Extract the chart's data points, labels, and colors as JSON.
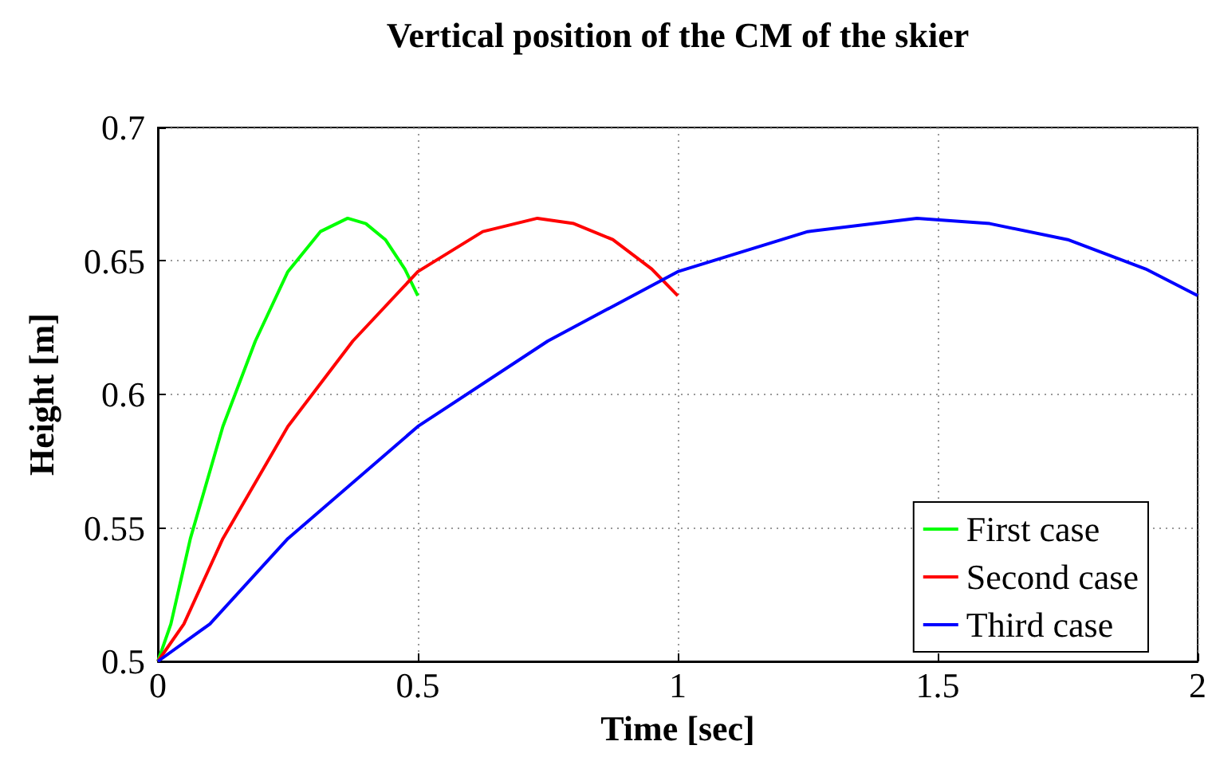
{
  "chart_data": {
    "type": "line",
    "title": "Vertical position of the CM of the skier",
    "xlabel": "Time [sec]",
    "ylabel": "Height [m]",
    "xlim": [
      0,
      2
    ],
    "xticks": [
      0,
      0.5,
      1,
      1.5,
      2
    ],
    "ylim": [
      0.5,
      0.7
    ],
    "yticks": [
      0.5,
      0.55,
      0.6,
      0.65,
      0.7
    ],
    "grid": true,
    "legend": "bottom right",
    "line_style": "solid",
    "marker": "none",
    "series": [
      {
        "name": "First case",
        "color": "#00ff00",
        "x": [
          0,
          0.025,
          0.0625,
          0.125,
          0.1875,
          0.25,
          0.3125,
          0.365,
          0.4,
          0.4375,
          0.475,
          0.5
        ],
        "values": [
          0.5,
          0.514,
          0.546,
          0.588,
          0.62,
          0.646,
          0.661,
          0.666,
          0.664,
          0.658,
          0.647,
          0.637
        ]
      },
      {
        "name": "Second case",
        "color": "#ff0000",
        "x": [
          0,
          0.05,
          0.125,
          0.25,
          0.375,
          0.5,
          0.625,
          0.73,
          0.8,
          0.875,
          0.95,
          1
        ],
        "values": [
          0.5,
          0.514,
          0.546,
          0.588,
          0.62,
          0.646,
          0.661,
          0.666,
          0.664,
          0.658,
          0.647,
          0.637
        ]
      },
      {
        "name": "Third case",
        "color": "#0000ff",
        "x": [
          0,
          0.1,
          0.25,
          0.5,
          0.75,
          1,
          1.25,
          1.46,
          1.6,
          1.75,
          1.9,
          2
        ],
        "values": [
          0.5,
          0.514,
          0.546,
          0.588,
          0.62,
          0.646,
          0.661,
          0.666,
          0.664,
          0.658,
          0.647,
          0.637
        ]
      }
    ]
  }
}
